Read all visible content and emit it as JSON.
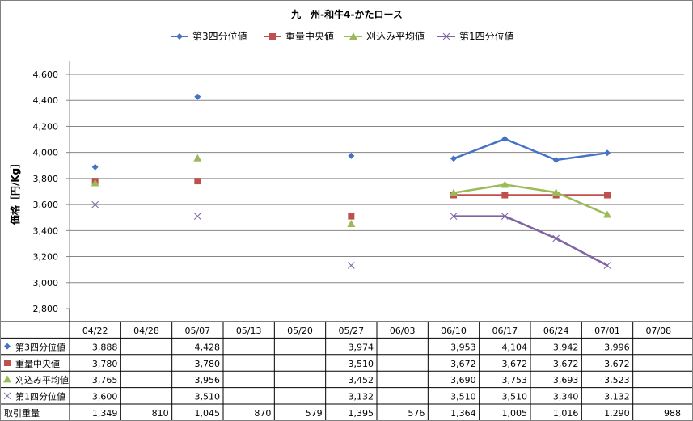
{
  "chart_data": {
    "type": "line",
    "title": "九　州-和牛4-かたロース",
    "ylabel": "価格［円/Kg］",
    "ylim": [
      2800,
      4600
    ],
    "ystep": 200,
    "ytick_labels": [
      "2,800",
      "3,000",
      "3,200",
      "3,400",
      "3,600",
      "3,800",
      "4,000",
      "4,200",
      "4,400",
      "4,600"
    ],
    "grid": true,
    "legend_position": "top",
    "categories": [
      "04/22",
      "04/28",
      "05/07",
      "05/13",
      "05/20",
      "05/27",
      "06/03",
      "06/10",
      "06/17",
      "06/24",
      "07/01",
      "07/08"
    ],
    "series": [
      {
        "name": "第3四分位値",
        "color": "#4472C4",
        "marker": "diamond",
        "values": [
          3888,
          null,
          4428,
          null,
          null,
          3974,
          null,
          3953,
          4104,
          3942,
          3996,
          null
        ]
      },
      {
        "name": "重量中央値",
        "color": "#C0504D",
        "marker": "square",
        "values": [
          3780,
          null,
          3780,
          null,
          null,
          3510,
          null,
          3672,
          3672,
          3672,
          3672,
          null
        ]
      },
      {
        "name": "刈込み平均値",
        "color": "#9BBB59",
        "marker": "triangle",
        "values": [
          3765,
          null,
          3956,
          null,
          null,
          3452,
          null,
          3690,
          3753,
          3693,
          3523,
          null
        ]
      },
      {
        "name": "第1四分位値",
        "color": "#8064A2",
        "marker": "x",
        "values": [
          3600,
          null,
          3510,
          null,
          null,
          3132,
          null,
          3510,
          3510,
          3340,
          3132,
          null
        ]
      }
    ],
    "table": {
      "rows": [
        {
          "label": "第3四分位値",
          "marker": "diamond",
          "color": "#4472C4",
          "cells": [
            "3,888",
            "",
            "4,428",
            "",
            "",
            "3,974",
            "",
            "3,953",
            "4,104",
            "3,942",
            "3,996",
            ""
          ]
        },
        {
          "label": "重量中央値",
          "marker": "square",
          "color": "#C0504D",
          "cells": [
            "3,780",
            "",
            "3,780",
            "",
            "",
            "3,510",
            "",
            "3,672",
            "3,672",
            "3,672",
            "3,672",
            ""
          ]
        },
        {
          "label": "刈込み平均値",
          "marker": "triangle",
          "color": "#9BBB59",
          "cells": [
            "3,765",
            "",
            "3,956",
            "",
            "",
            "3,452",
            "",
            "3,690",
            "3,753",
            "3,693",
            "3,523",
            ""
          ]
        },
        {
          "label": "第1四分位値",
          "marker": "x",
          "color": "#8064A2",
          "cells": [
            "3,600",
            "",
            "3,510",
            "",
            "",
            "3,132",
            "",
            "3,510",
            "3,510",
            "3,340",
            "3,132",
            ""
          ]
        },
        {
          "label": "取引重量",
          "marker": "",
          "color": "",
          "cells": [
            "1,349",
            "810",
            "1,045",
            "870",
            "579",
            "1,395",
            "576",
            "1,364",
            "1,005",
            "1,016",
            "1,290",
            "988"
          ]
        }
      ]
    }
  }
}
